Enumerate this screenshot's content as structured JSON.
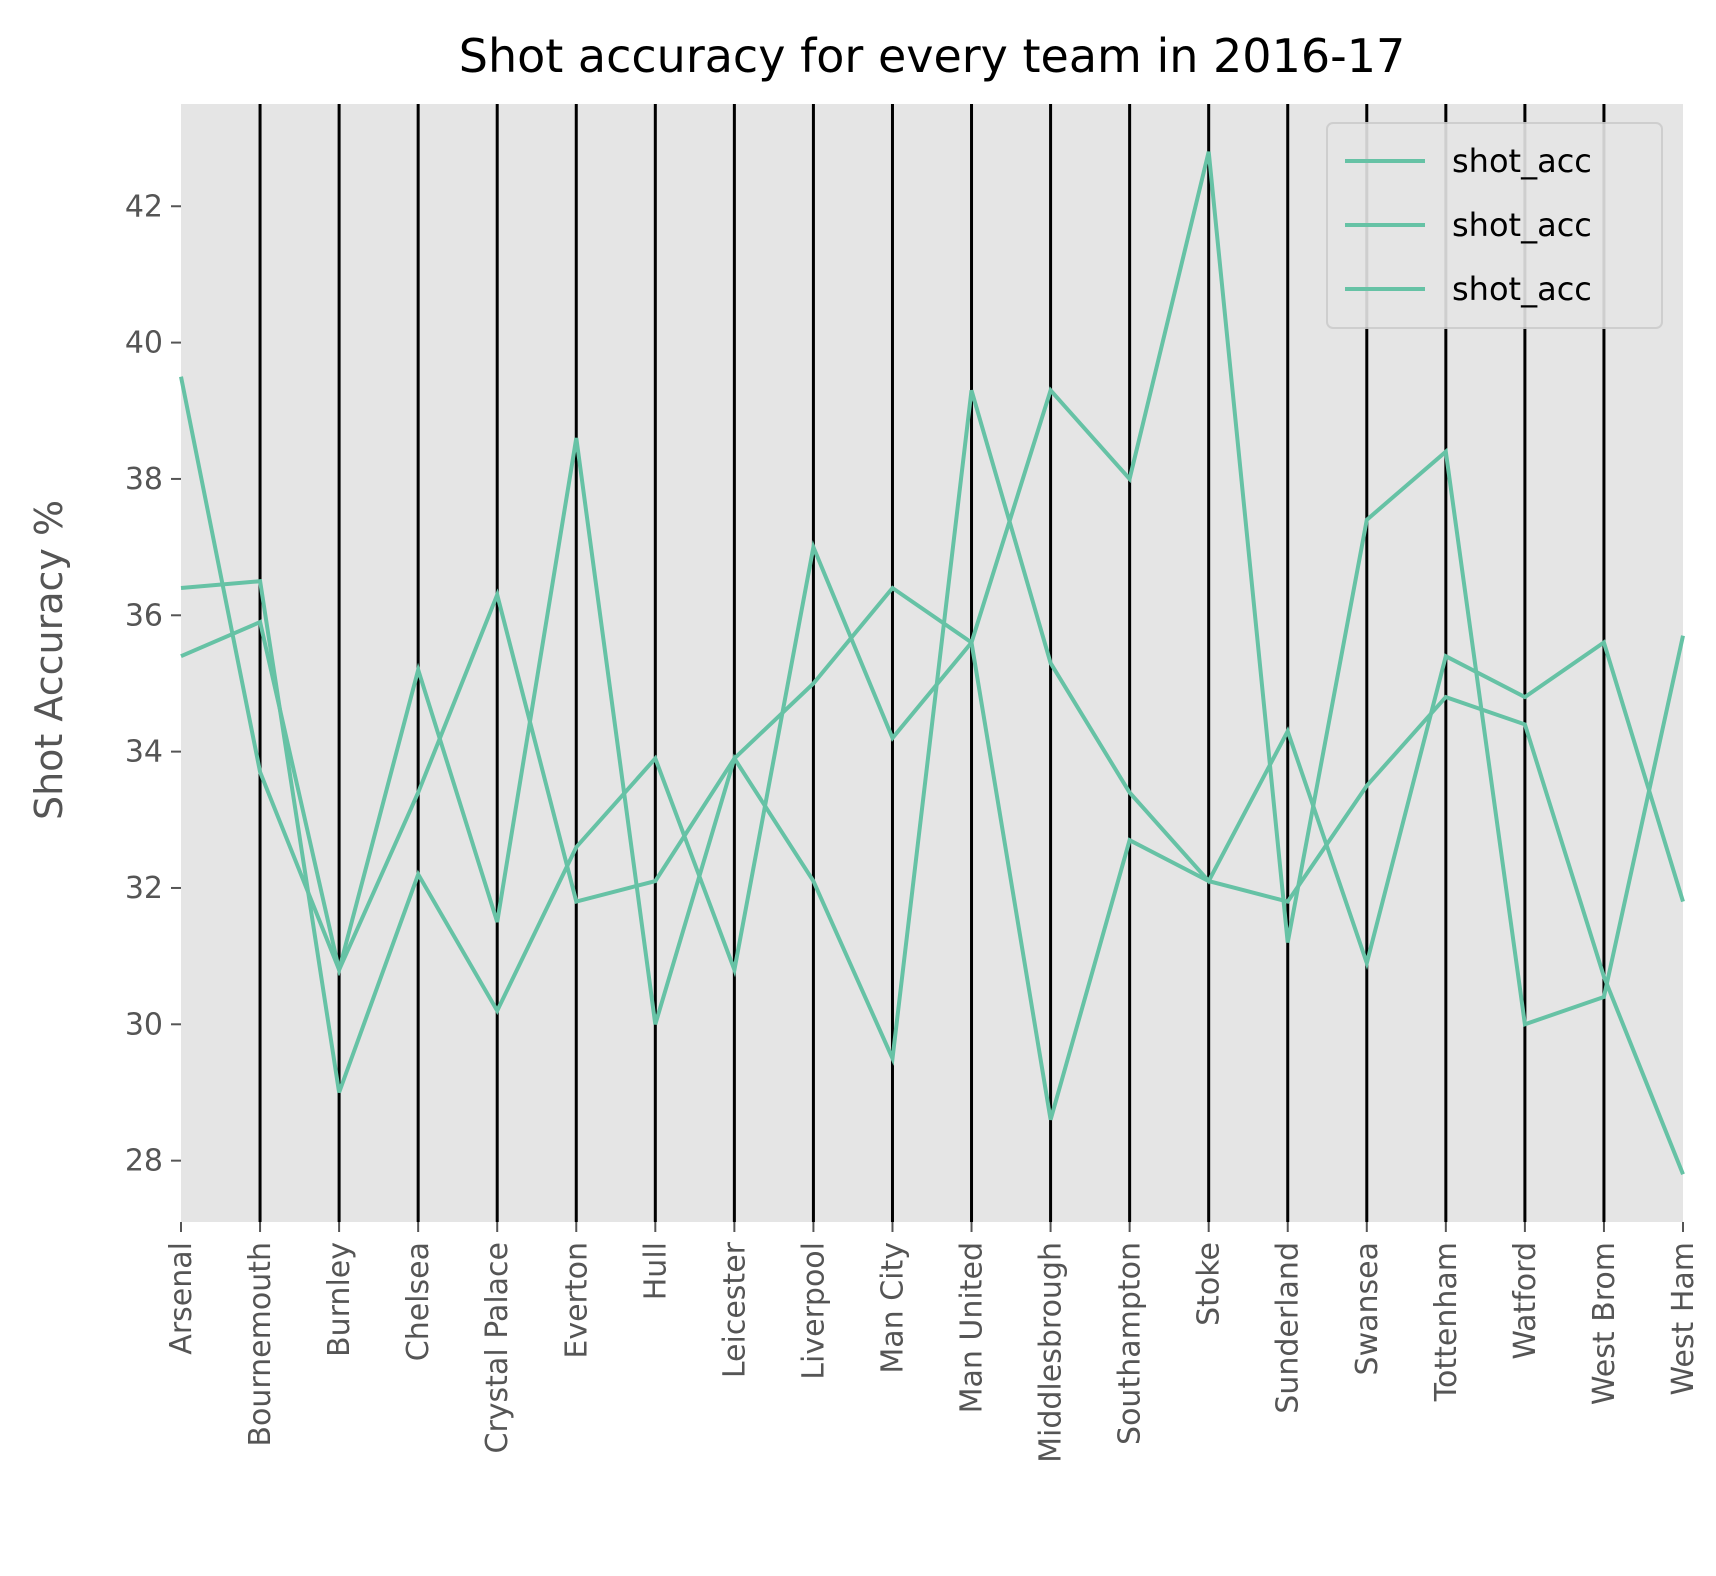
{
  "chart_data": {
    "type": "line",
    "subtype": "parallel-coordinates",
    "title": "Shot accuracy for every team in 2016-17",
    "xlabel": "",
    "ylabel": "Shot Accuracy %",
    "ylim": [
      27.1,
      43.5
    ],
    "yticks": [
      28,
      30,
      32,
      34,
      36,
      38,
      40,
      42
    ],
    "grid": false,
    "legend_position": "top-right",
    "colors": {
      "series": "#66c2a5",
      "background": "#e5e5e5",
      "axis_lines": "#000000",
      "tick_text": "#555555"
    },
    "categories": [
      "Arsenal",
      "Bournemouth",
      "Burnley",
      "Chelsea",
      "Crystal Palace",
      "Everton",
      "Hull",
      "Leicester",
      "Liverpool",
      "Man City",
      "Man United",
      "Middlesbrough",
      "Southampton",
      "Stoke",
      "Sunderland",
      "Swansea",
      "Tottenham",
      "Watford",
      "West Brom",
      "West Ham"
    ],
    "series": [
      {
        "name": "shot_acc",
        "values": [
          39.5,
          33.7,
          30.8,
          35.2,
          31.5,
          38.6,
          30.0,
          33.9,
          32.1,
          29.5,
          39.3,
          35.3,
          33.4,
          32.1,
          34.3,
          30.9,
          35.4,
          34.8,
          35.6,
          31.8
        ]
      },
      {
        "name": "shot_acc",
        "values": [
          36.4,
          36.5,
          29.0,
          32.2,
          30.2,
          32.6,
          33.9,
          30.8,
          37.0,
          34.2,
          35.6,
          39.3,
          38.0,
          42.8,
          31.2,
          37.4,
          38.4,
          30.0,
          30.4,
          35.7
        ]
      },
      {
        "name": "shot_acc",
        "values": [
          35.4,
          35.9,
          30.8,
          33.4,
          36.3,
          31.8,
          32.1,
          33.9,
          35.0,
          36.4,
          35.6,
          28.6,
          32.7,
          32.1,
          31.8,
          33.5,
          34.8,
          34.4,
          30.7,
          27.8
        ]
      }
    ]
  }
}
